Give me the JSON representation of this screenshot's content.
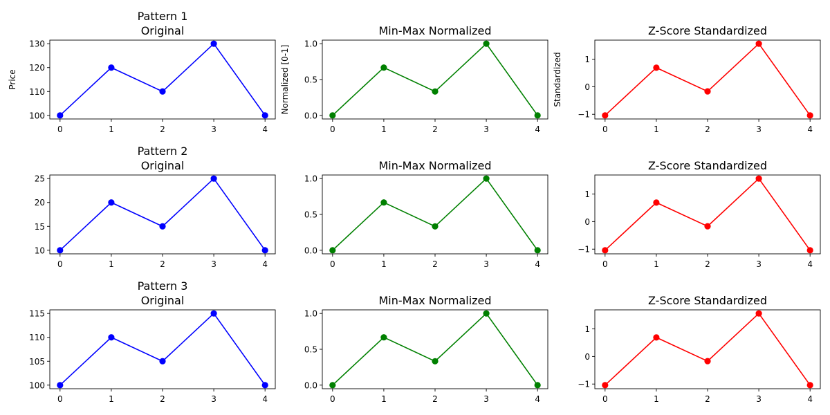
{
  "chart_data": [
    {
      "type": "line",
      "title": "Pattern 1\nOriginal",
      "ylabel": "Price",
      "xlabel": "",
      "x": [
        0,
        1,
        2,
        3,
        4
      ],
      "y": [
        100,
        120,
        110,
        130,
        100
      ],
      "color": "#0000ff",
      "xlim": [
        -0.2,
        4.2
      ],
      "ylim": [
        98.5,
        131.5
      ],
      "xticks": [
        0,
        1,
        2,
        3,
        4
      ],
      "yticks": [
        100,
        110,
        120,
        130
      ],
      "ytick_labels": [
        "100",
        "110",
        "120",
        "130"
      ],
      "grid": false
    },
    {
      "type": "line",
      "title": "Min-Max Normalized",
      "ylabel": "Normalized [0-1]",
      "xlabel": "",
      "x": [
        0,
        1,
        2,
        3,
        4
      ],
      "y": [
        0,
        0.667,
        0.333,
        1,
        0
      ],
      "color": "#008000",
      "xlim": [
        -0.2,
        4.2
      ],
      "ylim": [
        -0.05,
        1.05
      ],
      "xticks": [
        0,
        1,
        2,
        3,
        4
      ],
      "yticks": [
        0,
        0.5,
        1
      ],
      "ytick_labels": [
        "0.0",
        "0.5",
        "1.0"
      ],
      "grid": false
    },
    {
      "type": "line",
      "title": "Z-Score Standardized",
      "ylabel": "Standardized",
      "xlabel": "",
      "x": [
        0,
        1,
        2,
        3,
        4
      ],
      "y": [
        -1.04,
        0.69,
        -0.17,
        1.56,
        -1.04
      ],
      "color": "#ff0000",
      "xlim": [
        -0.2,
        4.2
      ],
      "ylim": [
        -1.17,
        1.69
      ],
      "xticks": [
        0,
        1,
        2,
        3,
        4
      ],
      "yticks": [
        -1,
        0,
        1
      ],
      "ytick_labels": [
        "−1",
        "0",
        "1"
      ],
      "grid": false
    },
    {
      "type": "line",
      "title": "Pattern 2\nOriginal",
      "ylabel": "",
      "xlabel": "",
      "x": [
        0,
        1,
        2,
        3,
        4
      ],
      "y": [
        10,
        20,
        15,
        25,
        10
      ],
      "color": "#0000ff",
      "xlim": [
        -0.2,
        4.2
      ],
      "ylim": [
        9.25,
        25.75
      ],
      "xticks": [
        0,
        1,
        2,
        3,
        4
      ],
      "yticks": [
        10,
        15,
        20,
        25
      ],
      "ytick_labels": [
        "10",
        "15",
        "20",
        "25"
      ],
      "grid": false
    },
    {
      "type": "line",
      "title": "Min-Max Normalized",
      "ylabel": "",
      "xlabel": "",
      "x": [
        0,
        1,
        2,
        3,
        4
      ],
      "y": [
        0,
        0.667,
        0.333,
        1,
        0
      ],
      "color": "#008000",
      "xlim": [
        -0.2,
        4.2
      ],
      "ylim": [
        -0.05,
        1.05
      ],
      "xticks": [
        0,
        1,
        2,
        3,
        4
      ],
      "yticks": [
        0,
        0.5,
        1
      ],
      "ytick_labels": [
        "0.0",
        "0.5",
        "1.0"
      ],
      "grid": false
    },
    {
      "type": "line",
      "title": "Z-Score Standardized",
      "ylabel": "",
      "xlabel": "",
      "x": [
        0,
        1,
        2,
        3,
        4
      ],
      "y": [
        -1.04,
        0.69,
        -0.17,
        1.56,
        -1.04
      ],
      "color": "#ff0000",
      "xlim": [
        -0.2,
        4.2
      ],
      "ylim": [
        -1.17,
        1.69
      ],
      "xticks": [
        0,
        1,
        2,
        3,
        4
      ],
      "yticks": [
        -1,
        0,
        1
      ],
      "ytick_labels": [
        "−1",
        "0",
        "1"
      ],
      "grid": false
    },
    {
      "type": "line",
      "title": "Pattern 3\nOriginal",
      "ylabel": "",
      "xlabel": "",
      "x": [
        0,
        1,
        2,
        3,
        4
      ],
      "y": [
        100,
        110,
        105,
        115,
        100
      ],
      "color": "#0000ff",
      "xlim": [
        -0.2,
        4.2
      ],
      "ylim": [
        99.25,
        115.75
      ],
      "xticks": [
        0,
        1,
        2,
        3,
        4
      ],
      "yticks": [
        100,
        105,
        110,
        115
      ],
      "ytick_labels": [
        "100",
        "105",
        "110",
        "115"
      ],
      "grid": false
    },
    {
      "type": "line",
      "title": "Min-Max Normalized",
      "ylabel": "",
      "xlabel": "",
      "x": [
        0,
        1,
        2,
        3,
        4
      ],
      "y": [
        0,
        0.667,
        0.333,
        1,
        0
      ],
      "color": "#008000",
      "xlim": [
        -0.2,
        4.2
      ],
      "ylim": [
        -0.05,
        1.05
      ],
      "xticks": [
        0,
        1,
        2,
        3,
        4
      ],
      "yticks": [
        0,
        0.5,
        1
      ],
      "ytick_labels": [
        "0.0",
        "0.5",
        "1.0"
      ],
      "grid": false
    },
    {
      "type": "line",
      "title": "Z-Score Standardized",
      "ylabel": "",
      "xlabel": "",
      "x": [
        0,
        1,
        2,
        3,
        4
      ],
      "y": [
        -1.04,
        0.69,
        -0.17,
        1.56,
        -1.04
      ],
      "color": "#ff0000",
      "xlim": [
        -0.2,
        4.2
      ],
      "ylim": [
        -1.17,
        1.69
      ],
      "xticks": [
        0,
        1,
        2,
        3,
        4
      ],
      "yticks": [
        -1,
        0,
        1
      ],
      "ytick_labels": [
        "−1",
        "0",
        "1"
      ],
      "grid": false
    }
  ]
}
